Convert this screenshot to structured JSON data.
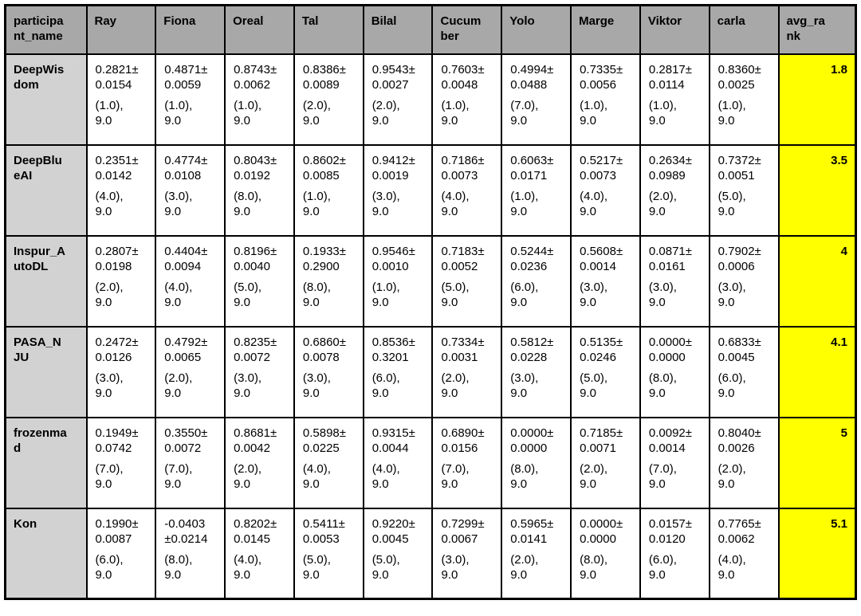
{
  "chart_data": {
    "type": "table",
    "title": "",
    "columns": [
      "participant_name",
      "Ray",
      "Fiona",
      "Oreal",
      "Tal",
      "Bilal",
      "Cucumber",
      "Yolo",
      "Marge",
      "Viktor",
      "carla",
      "avg_rank"
    ],
    "rows": [
      {
        "name": "DeepWisdom",
        "cells": [
          {
            "score": "0.2821± 0.0154",
            "rank": "(1.0), 9.0"
          },
          {
            "score": "0.4871± 0.0059",
            "rank": "(1.0), 9.0"
          },
          {
            "score": "0.8743± 0.0062",
            "rank": "(1.0), 9.0"
          },
          {
            "score": "0.8386± 0.0089",
            "rank": "(2.0), 9.0"
          },
          {
            "score": "0.9543± 0.0027",
            "rank": "(2.0), 9.0"
          },
          {
            "score": "0.7603± 0.0048",
            "rank": "(1.0), 9.0"
          },
          {
            "score": "0.4994± 0.0488",
            "rank": "(7.0), 9.0"
          },
          {
            "score": "0.7335± 0.0056",
            "rank": "(1.0), 9.0"
          },
          {
            "score": "0.2817± 0.0114",
            "rank": "(1.0), 9.0"
          },
          {
            "score": "0.8360± 0.0025",
            "rank": "(1.0), 9.0"
          }
        ],
        "avg_rank": "1.8"
      },
      {
        "name": "DeepBlueAI",
        "cells": [
          {
            "score": "0.2351± 0.0142",
            "rank": "(4.0), 9.0"
          },
          {
            "score": "0.4774± 0.0108",
            "rank": "(3.0), 9.0"
          },
          {
            "score": "0.8043± 0.0192",
            "rank": "(8.0), 9.0"
          },
          {
            "score": "0.8602± 0.0085",
            "rank": "(1.0), 9.0"
          },
          {
            "score": "0.9412± 0.0019",
            "rank": "(3.0), 9.0"
          },
          {
            "score": "0.7186± 0.0073",
            "rank": "(4.0), 9.0"
          },
          {
            "score": "0.6063± 0.0171",
            "rank": "(1.0), 9.0"
          },
          {
            "score": "0.5217± 0.0073",
            "rank": "(4.0), 9.0"
          },
          {
            "score": "0.2634± 0.0989",
            "rank": "(2.0), 9.0"
          },
          {
            "score": "0.7372± 0.0051",
            "rank": "(5.0), 9.0"
          }
        ],
        "avg_rank": "3.5"
      },
      {
        "name": "Inspur_AutoDL",
        "cells": [
          {
            "score": "0.2807± 0.0198",
            "rank": "(2.0), 9.0"
          },
          {
            "score": "0.4404± 0.0094",
            "rank": "(4.0), 9.0"
          },
          {
            "score": "0.8196± 0.0040",
            "rank": "(5.0), 9.0"
          },
          {
            "score": "0.1933± 0.2900",
            "rank": "(8.0), 9.0"
          },
          {
            "score": "0.9546± 0.0010",
            "rank": "(1.0), 9.0"
          },
          {
            "score": "0.7183± 0.0052",
            "rank": "(5.0), 9.0"
          },
          {
            "score": "0.5244± 0.0236",
            "rank": "(6.0), 9.0"
          },
          {
            "score": "0.5608± 0.0014",
            "rank": "(3.0), 9.0"
          },
          {
            "score": "0.0871± 0.0161",
            "rank": "(3.0), 9.0"
          },
          {
            "score": "0.7902± 0.0006",
            "rank": "(3.0), 9.0"
          }
        ],
        "avg_rank": "4"
      },
      {
        "name": "PASA_NJU",
        "cells": [
          {
            "score": "0.2472± 0.0126",
            "rank": "(3.0), 9.0"
          },
          {
            "score": "0.4792± 0.0065",
            "rank": "(2.0), 9.0"
          },
          {
            "score": "0.8235± 0.0072",
            "rank": "(3.0), 9.0"
          },
          {
            "score": "0.6860± 0.0078",
            "rank": "(3.0), 9.0"
          },
          {
            "score": "0.8536± 0.3201",
            "rank": "(6.0), 9.0"
          },
          {
            "score": "0.7334± 0.0031",
            "rank": "(2.0), 9.0"
          },
          {
            "score": "0.5812± 0.0228",
            "rank": "(3.0), 9.0"
          },
          {
            "score": "0.5135± 0.0246",
            "rank": "(5.0), 9.0"
          },
          {
            "score": "0.0000± 0.0000",
            "rank": "(8.0), 9.0"
          },
          {
            "score": "0.6833± 0.0045",
            "rank": "(6.0), 9.0"
          }
        ],
        "avg_rank": "4.1"
      },
      {
        "name": "frozenmad",
        "cells": [
          {
            "score": "0.1949± 0.0742",
            "rank": "(7.0), 9.0"
          },
          {
            "score": "0.3550± 0.0072",
            "rank": "(7.0), 9.0"
          },
          {
            "score": "0.8681± 0.0042",
            "rank": "(2.0), 9.0"
          },
          {
            "score": "0.5898± 0.0225",
            "rank": "(4.0), 9.0"
          },
          {
            "score": "0.9315± 0.0044",
            "rank": "(4.0), 9.0"
          },
          {
            "score": "0.6890± 0.0156",
            "rank": "(7.0), 9.0"
          },
          {
            "score": "0.0000± 0.0000",
            "rank": "(8.0), 9.0"
          },
          {
            "score": "0.7185± 0.0071",
            "rank": "(2.0), 9.0"
          },
          {
            "score": "0.0092± 0.0014",
            "rank": "(7.0), 9.0"
          },
          {
            "score": "0.8040± 0.0026",
            "rank": "(2.0), 9.0"
          }
        ],
        "avg_rank": "5"
      },
      {
        "name": "Kon",
        "cells": [
          {
            "score": "0.1990± 0.0087",
            "rank": "(6.0), 9.0"
          },
          {
            "score": "-0.0403 ±0.0214",
            "rank": "(8.0), 9.0"
          },
          {
            "score": "0.8202± 0.0145",
            "rank": "(4.0), 9.0"
          },
          {
            "score": "0.5411± 0.0053",
            "rank": "(5.0), 9.0"
          },
          {
            "score": "0.9220± 0.0045",
            "rank": "(5.0), 9.0"
          },
          {
            "score": "0.7299± 0.0067",
            "rank": "(3.0), 9.0"
          },
          {
            "score": "0.5965± 0.0141",
            "rank": "(2.0), 9.0"
          },
          {
            "score": "0.0000± 0.0000",
            "rank": "(8.0), 9.0"
          },
          {
            "score": "0.0157± 0.0120",
            "rank": "(6.0), 9.0"
          },
          {
            "score": "0.7765± 0.0062",
            "rank": "(4.0), 9.0"
          }
        ],
        "avg_rank": "5.1"
      }
    ]
  },
  "colors": {
    "header_bg": "#a8a8a8",
    "row_header_bg": "#d2d2d2",
    "avg_rank_bg": "#ffff00",
    "cell_bg": "#ffffff",
    "border": "#000000"
  }
}
